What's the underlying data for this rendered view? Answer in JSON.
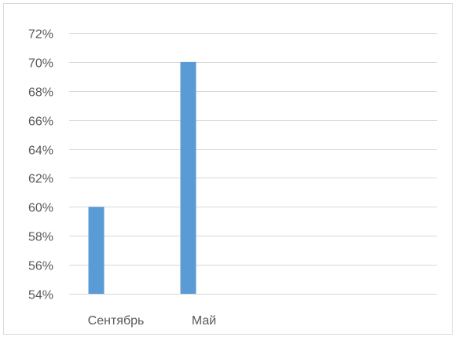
{
  "chart_data": {
    "type": "bar",
    "categories": [
      "Сентябрь",
      "Май"
    ],
    "series": [
      {
        "values": [
          0.6,
          0.7
        ],
        "color": "#5b9bd5"
      }
    ],
    "ylim": [
      0.54,
      0.72
    ],
    "yticks": [
      0.54,
      0.56,
      0.58,
      0.6,
      0.62,
      0.64,
      0.66,
      0.68,
      0.7,
      0.72
    ],
    "ytick_labels": [
      "54%",
      "56%",
      "58%",
      "60%",
      "62%",
      "64%",
      "66%",
      "68%",
      "70%",
      "72%"
    ],
    "grid": true,
    "legend": "none",
    "gridline_color": "#d9d9d9",
    "text_color": "#595959"
  }
}
